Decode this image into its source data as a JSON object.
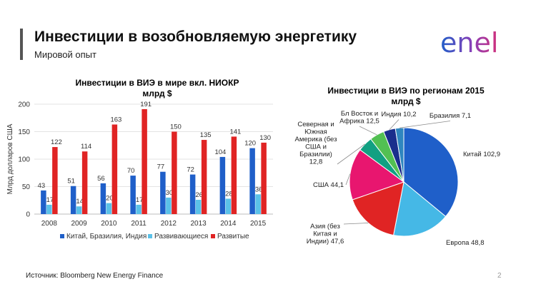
{
  "header": {
    "title": "Инвестиции в возобновляемую энергетику",
    "subtitle": "Мировой опыт",
    "logo_text": "enel"
  },
  "footer": {
    "source": "Источник: Bloomberg New Energy Finance",
    "page_number": "2"
  },
  "colors": {
    "series_china": "#1f5fc9",
    "series_developing": "#5bc1e8",
    "series_developed": "#e02424",
    "logo_blue": "#1f5fc9",
    "logo_pink": "#d2307a"
  },
  "chart_data": [
    {
      "type": "bar",
      "title": "Инвестиции в ВИЭ в мире вкл. НИОКР",
      "subtitle": "млрд $",
      "ylabel": "Млрд долларов США",
      "xlabel": "",
      "ylim": [
        0,
        200
      ],
      "yticks": [
        0,
        50,
        100,
        150,
        200
      ],
      "grid": true,
      "legend_position": "bottom",
      "categories": [
        "2008",
        "2009",
        "2010",
        "2011",
        "2012",
        "2013",
        "2014",
        "2015"
      ],
      "series": [
        {
          "name": "Китай, Бразилия, Индия",
          "color": "#1f5fc9",
          "values": [
            43,
            51,
            56,
            70,
            77,
            72,
            104,
            120
          ]
        },
        {
          "name": "Развивающиеся",
          "color": "#5bc1e8",
          "values": [
            17,
            14,
            20,
            17,
            30,
            26,
            28,
            36
          ]
        },
        {
          "name": "Развитые",
          "color": "#e02424",
          "values": [
            122,
            114,
            163,
            191,
            150,
            135,
            141,
            130
          ]
        }
      ]
    },
    {
      "type": "pie",
      "title": "Инвестиции в ВИЭ по регионам 2015",
      "subtitle": "млрд $",
      "slices": [
        {
          "label": [
            "Китай 102,9"
          ],
          "value": 102.9,
          "color": "#1f5fc9"
        },
        {
          "label": [
            "Европа 48,8"
          ],
          "value": 48.8,
          "color": "#45b8e6"
        },
        {
          "label": [
            "Азия (без",
            "Китая и",
            "Индии) 47,6"
          ],
          "value": 47.6,
          "color": "#e02424"
        },
        {
          "label": [
            "США 44,1"
          ],
          "value": 44.1,
          "color": "#e8166f"
        },
        {
          "label": [
            "Северная и",
            "Южная",
            "Америка (без",
            "США и",
            "Бразилии)",
            "12,8"
          ],
          "value": 12.8,
          "color": "#12a082"
        },
        {
          "label": [
            "Бл Восток и",
            "Африка 12,5"
          ],
          "value": 12.5,
          "color": "#52c052"
        },
        {
          "label": [
            "Индия  10,2"
          ],
          "value": 10.2,
          "color": "#1a2e8c"
        },
        {
          "label": [
            "Бразилия 7,1"
          ],
          "value": 7.1,
          "color": "#2f86bf"
        }
      ]
    }
  ]
}
